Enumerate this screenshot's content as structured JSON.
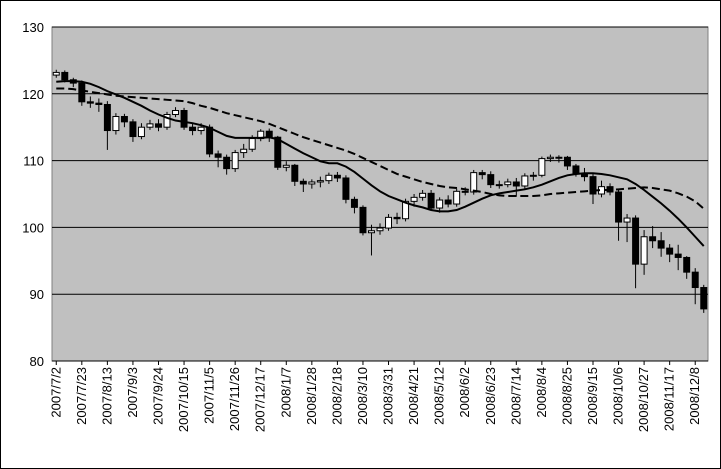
{
  "chart_data": {
    "type": "candlestick",
    "categories": [
      "2007/7/2",
      null,
      null,
      "2007/7/23",
      null,
      null,
      "2007/8/13",
      null,
      null,
      "2007/9/3",
      null,
      null,
      "2007/9/24",
      null,
      null,
      "2007/10/15",
      null,
      null,
      "2007/11/5",
      null,
      null,
      "2007/11/26",
      null,
      null,
      "2007/12/17",
      null,
      null,
      "2008/1/7",
      null,
      null,
      "2008/1/28",
      null,
      null,
      "2008/2/18",
      null,
      null,
      "2008/3/10",
      null,
      null,
      "2008/3/31",
      null,
      null,
      "2008/4/21",
      null,
      null,
      "2008/5/12",
      null,
      null,
      "2008/6/2",
      null,
      null,
      "2008/6/23",
      null,
      null,
      "2008/7/14",
      null,
      null,
      "2008/8/4",
      null,
      null,
      "2008/8/25",
      null,
      null,
      "2008/9/15",
      null,
      null,
      "2008/10/6",
      null,
      null,
      "2008/10/27",
      null,
      null,
      "2008/11/17",
      null,
      null,
      "2008/12/8",
      null
    ],
    "open": [
      122.8,
      123.2,
      122.1,
      121.6,
      118.8,
      118.6,
      118.4,
      114.5,
      116.6,
      115.8,
      113.6,
      115.0,
      115.5,
      115.0,
      116.9,
      117.5,
      115.0,
      114.5,
      115.0,
      111.0,
      110.5,
      108.8,
      111.2,
      111.7,
      113.3,
      114.4,
      113.5,
      109.0,
      109.3,
      106.9,
      106.5,
      106.8,
      107.0,
      107.8,
      107.4,
      104.2,
      103.0,
      99.2,
      99.5,
      99.9,
      101.5,
      101.3,
      103.9,
      104.5,
      105.1,
      102.9,
      104.1,
      103.5,
      105.4,
      105.3,
      108.2,
      107.9,
      106.4,
      106.4,
      106.8,
      106.2,
      107.7,
      107.8,
      110.3,
      110.5,
      110.5,
      109.2,
      108.1,
      107.6,
      105.0,
      106.1,
      105.3,
      100.8,
      101.4,
      94.5,
      98.6,
      98.0,
      96.9,
      96.0,
      95.5,
      93.3,
      91.0
    ],
    "high": [
      123.6,
      123.5,
      122.4,
      122.0,
      119.6,
      119.3,
      118.9,
      117.1,
      117.0,
      116.2,
      115.6,
      116.1,
      116.2,
      117.3,
      118.0,
      117.9,
      115.5,
      115.6,
      115.4,
      111.5,
      110.9,
      111.6,
      112.5,
      113.8,
      114.7,
      114.8,
      113.7,
      109.9,
      109.5,
      107.3,
      107.2,
      107.6,
      108.2,
      108.3,
      107.8,
      104.6,
      103.3,
      100.4,
      100.6,
      102.0,
      102.2,
      104.3,
      105.0,
      105.6,
      105.6,
      104.5,
      104.8,
      105.8,
      106.0,
      108.6,
      108.6,
      108.4,
      107.0,
      107.3,
      107.4,
      108.1,
      108.3,
      110.6,
      110.9,
      110.8,
      110.7,
      109.5,
      108.9,
      108.0,
      107.0,
      106.6,
      105.6,
      102.0,
      101.8,
      99.6,
      100.2,
      99.3,
      97.5,
      97.4,
      95.7,
      93.9,
      91.4
    ],
    "low": [
      122.4,
      121.7,
      121.0,
      118.2,
      117.9,
      117.3,
      111.6,
      113.9,
      115.0,
      112.8,
      113.2,
      114.6,
      114.4,
      114.6,
      116.5,
      114.6,
      113.8,
      113.9,
      110.5,
      109.0,
      107.9,
      108.3,
      110.4,
      111.3,
      112.9,
      112.8,
      108.6,
      108.4,
      106.2,
      105.3,
      105.8,
      106.0,
      106.5,
      106.8,
      103.6,
      102.1,
      98.8,
      95.8,
      98.9,
      99.5,
      100.5,
      100.9,
      103.1,
      104.0,
      102.5,
      102.2,
      103.0,
      103.1,
      104.8,
      104.9,
      107.2,
      105.9,
      105.8,
      106.0,
      104.6,
      105.8,
      107.0,
      107.5,
      109.8,
      109.7,
      108.6,
      107.6,
      106.9,
      103.5,
      104.5,
      104.8,
      98.0,
      97.8,
      90.9,
      92.9,
      96.9,
      95.6,
      94.8,
      93.6,
      92.3,
      88.5,
      87.2
    ],
    "close": [
      123.2,
      122.1,
      121.6,
      118.8,
      118.6,
      118.4,
      114.5,
      116.6,
      115.8,
      113.6,
      115.0,
      115.5,
      115.0,
      116.9,
      117.5,
      115.0,
      114.5,
      115.0,
      111.0,
      110.5,
      108.8,
      111.2,
      111.7,
      113.3,
      114.4,
      113.5,
      109.0,
      109.3,
      106.9,
      106.5,
      106.8,
      107.0,
      107.8,
      107.4,
      104.2,
      103.0,
      99.2,
      99.5,
      99.9,
      101.5,
      101.3,
      103.9,
      104.5,
      105.1,
      102.9,
      104.1,
      103.5,
      105.4,
      105.3,
      108.2,
      107.9,
      106.4,
      106.4,
      106.8,
      106.2,
      107.7,
      107.8,
      110.3,
      110.5,
      110.5,
      109.2,
      108.1,
      107.6,
      105.0,
      106.1,
      105.3,
      100.8,
      101.4,
      94.5,
      98.6,
      98.0,
      96.9,
      96.0,
      95.5,
      93.3,
      91.0,
      87.8
    ],
    "up_color": "#ffffff",
    "down_color": "#000000",
    "series": [
      {
        "color": "#000000",
        "dash": false,
        "values": [
          121.8,
          121.9,
          121.9,
          121.8,
          121.5,
          121.0,
          120.4,
          119.9,
          119.4,
          118.8,
          118.2,
          117.5,
          116.9,
          116.4,
          116.0,
          115.8,
          115.6,
          115.3,
          114.9,
          114.3,
          113.7,
          113.4,
          113.4,
          113.4,
          113.4,
          113.5,
          113.2,
          112.5,
          111.8,
          111.1,
          110.5,
          109.9,
          109.6,
          109.6,
          109.1,
          108.3,
          107.3,
          106.3,
          105.4,
          104.7,
          104.2,
          103.7,
          103.3,
          103.0,
          102.6,
          102.4,
          102.4,
          102.6,
          103.1,
          103.7,
          104.3,
          104.8,
          105.1,
          105.3,
          105.5,
          105.7,
          106.0,
          106.4,
          106.9,
          107.4,
          107.8,
          108.0,
          108.1,
          108.1,
          108.0,
          107.8,
          107.5,
          107.2,
          106.5,
          105.6,
          104.6,
          103.6,
          102.5,
          101.3,
          100.0,
          98.6,
          97.2
        ]
      },
      {
        "color": "#000000",
        "dash": true,
        "values": [
          120.8,
          120.8,
          120.7,
          120.5,
          120.3,
          120.1,
          119.9,
          119.7,
          119.6,
          119.5,
          119.4,
          119.3,
          119.2,
          119.1,
          119.0,
          118.9,
          118.6,
          118.2,
          117.9,
          117.5,
          117.1,
          116.8,
          116.5,
          116.2,
          115.9,
          115.5,
          115.0,
          114.5,
          114.0,
          113.5,
          113.1,
          112.7,
          112.3,
          111.9,
          111.5,
          111.0,
          110.4,
          109.8,
          109.2,
          108.6,
          108.0,
          107.6,
          107.2,
          106.8,
          106.5,
          106.2,
          106.0,
          105.9,
          105.7,
          105.5,
          105.3,
          105.0,
          104.8,
          104.7,
          104.7,
          104.7,
          104.7,
          104.8,
          105.0,
          105.1,
          105.2,
          105.3,
          105.4,
          105.5,
          105.6,
          105.6,
          105.7,
          105.8,
          105.9,
          106.0,
          105.9,
          105.7,
          105.5,
          105.1,
          104.6,
          103.9,
          102.8
        ]
      }
    ],
    "ylim": [
      80,
      130
    ],
    "yticks": [
      80,
      90,
      100,
      110,
      120,
      130
    ],
    "grid": true,
    "background": "#c0c0c0"
  }
}
